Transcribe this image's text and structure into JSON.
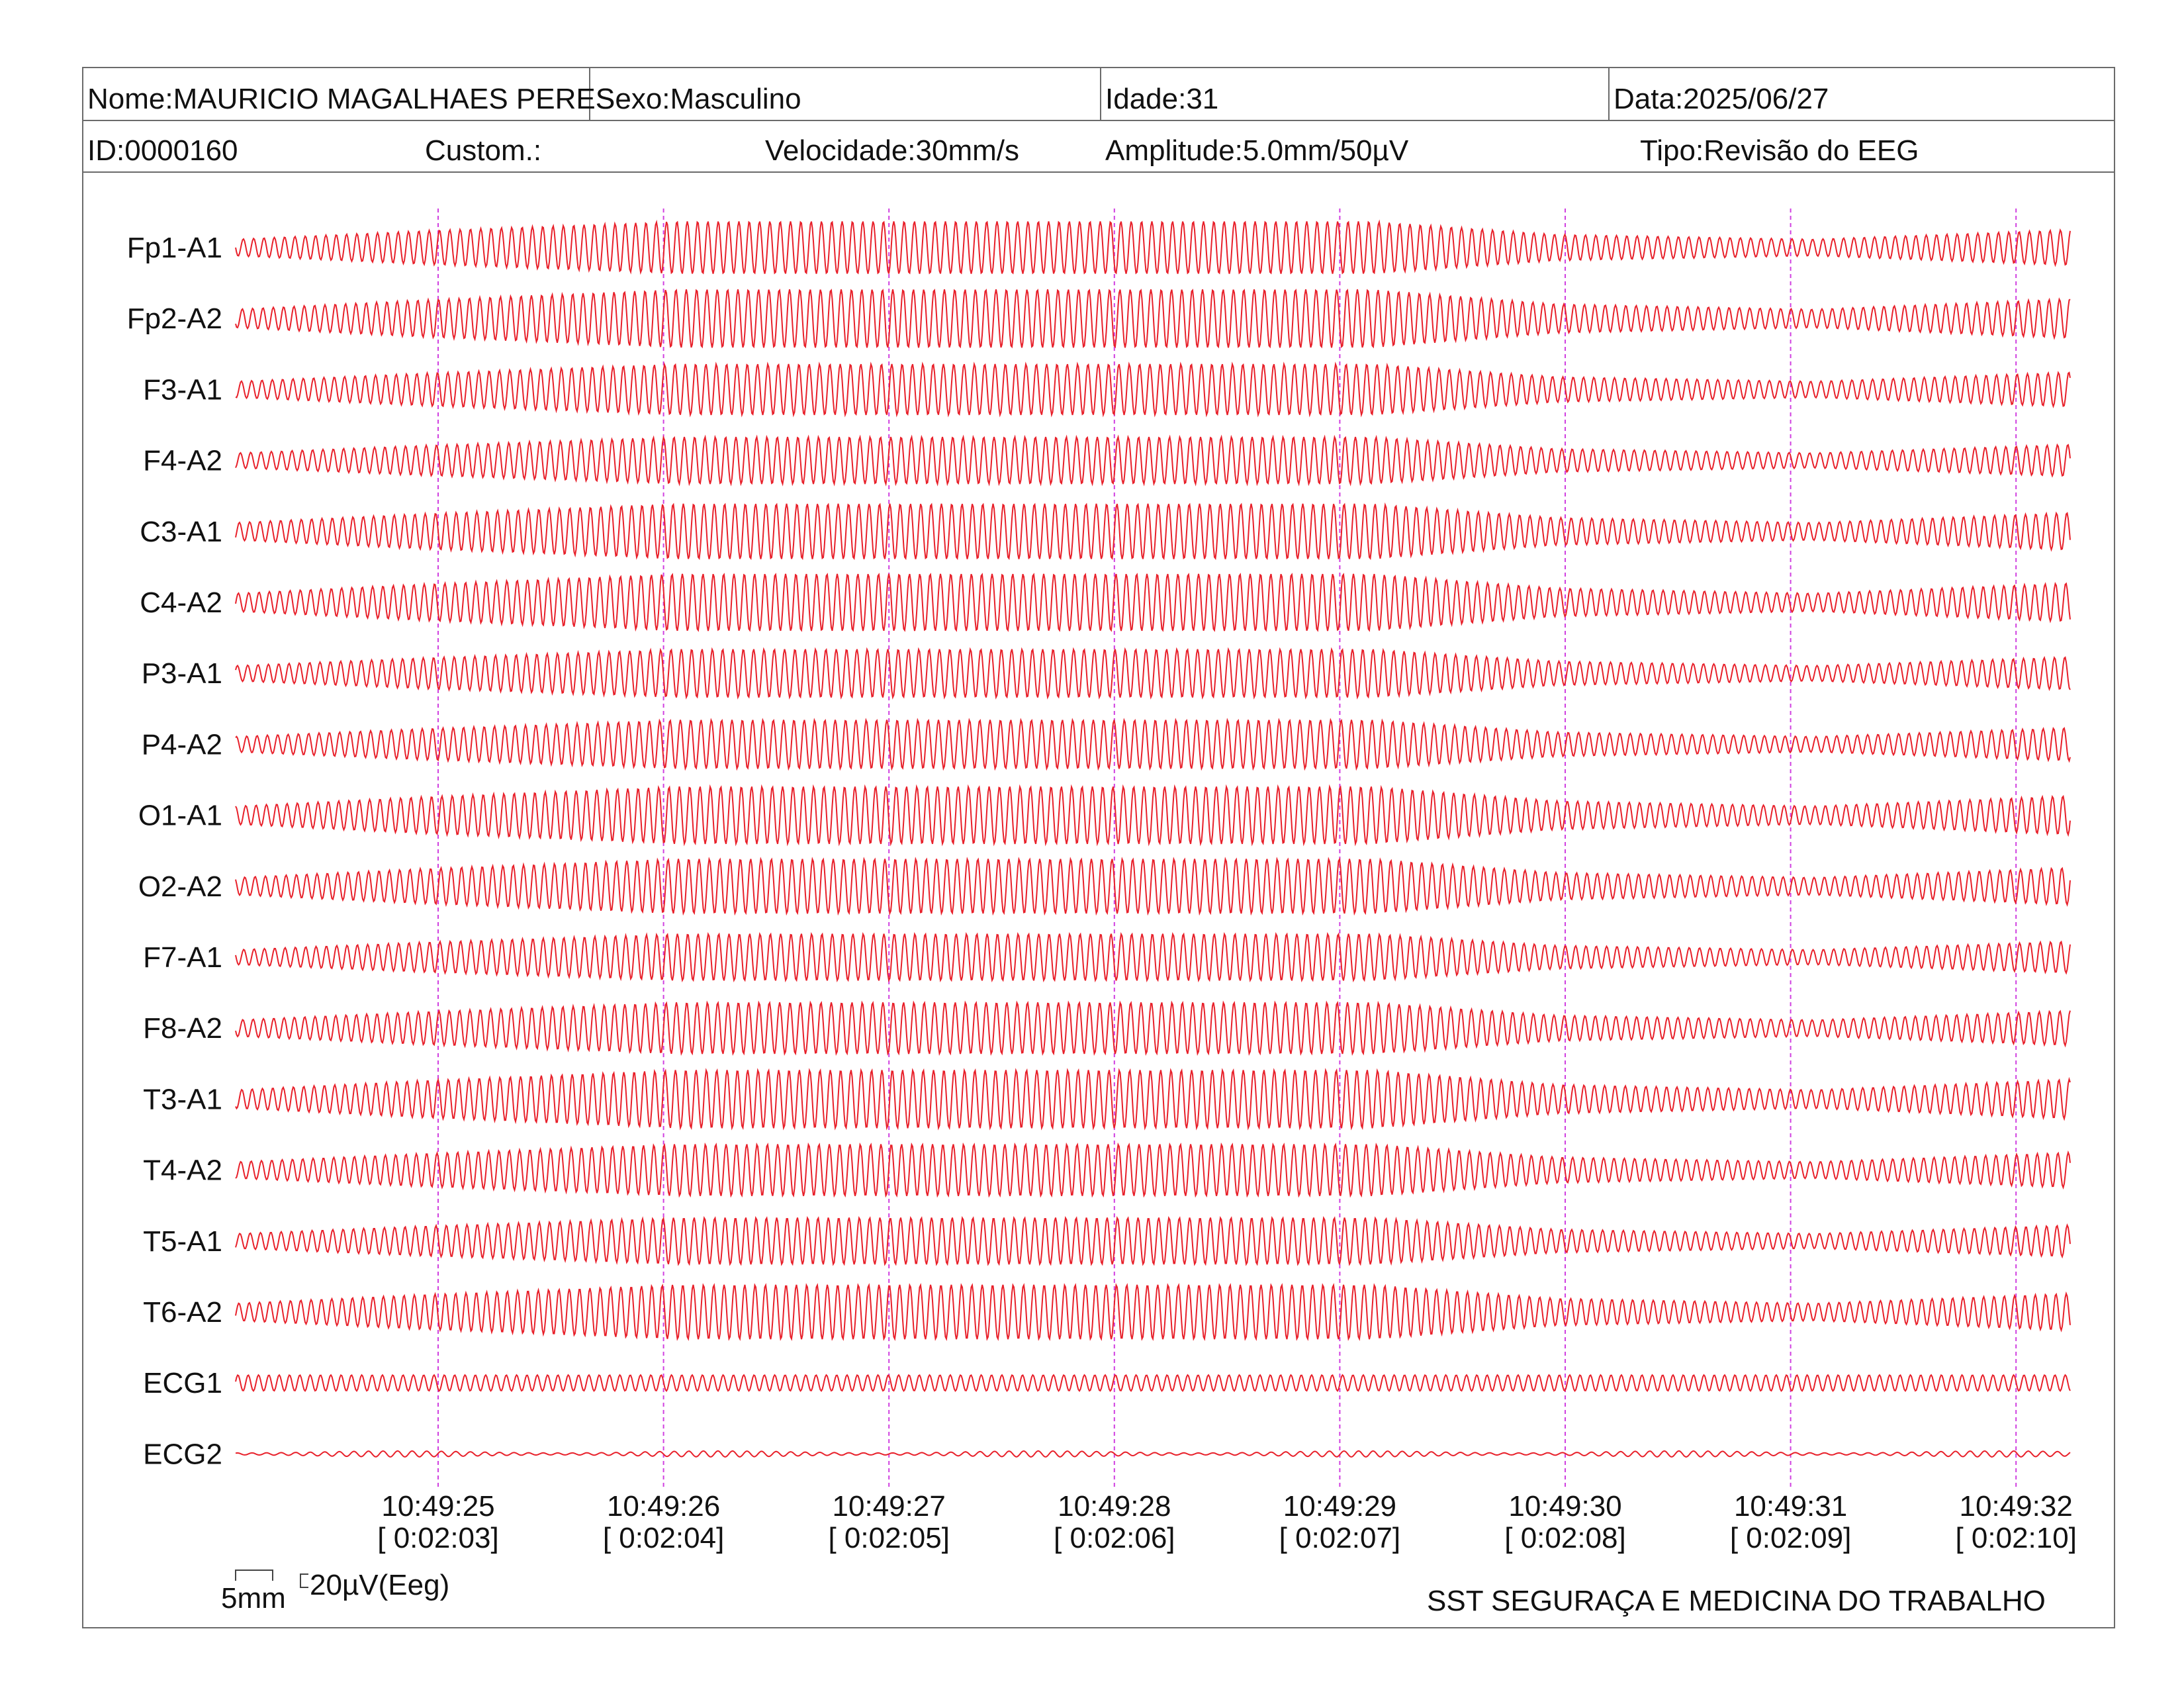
{
  "header": {
    "nome": "Nome:MAURICIO MAGALHAES PERES",
    "sexo": "Sexo:Masculino",
    "idade": "Idade:31",
    "data": "Data:2025/06/27",
    "id": "ID:0000160",
    "custom": "Custom.:",
    "velocidade": "Velocidade:30mm/s",
    "amplitude": "Amplitude:5.0mm/50µV",
    "tipo": "Tipo:Revisão do EEG"
  },
  "scale": {
    "time_label": "5mm",
    "amp_label": "20µV(Eeg)"
  },
  "footer": {
    "org": "SST SEGURAÇA E MEDICINA DO TRABALHO"
  },
  "colors": {
    "trace": "#e8202a",
    "marker": "#d040e0",
    "frame": "#6b6b6b"
  },
  "chart_data": {
    "type": "line",
    "channels": [
      "Fp1-A1",
      "Fp2-A2",
      "F3-A1",
      "F4-A2",
      "C3-A1",
      "C4-A2",
      "P3-A1",
      "P4-A2",
      "O1-A1",
      "O2-A2",
      "F7-A1",
      "F8-A2",
      "T3-A1",
      "T4-A2",
      "T5-A1",
      "T6-A2",
      "ECG1",
      "ECG2"
    ],
    "x_ticks": [
      {
        "time": "10:49:25",
        "elapsed": "[ 0:02:03]"
      },
      {
        "time": "10:49:26",
        "elapsed": "[ 0:02:04]"
      },
      {
        "time": "10:49:27",
        "elapsed": "[ 0:02:05]"
      },
      {
        "time": "10:49:28",
        "elapsed": "[ 0:02:06]"
      },
      {
        "time": "10:49:29",
        "elapsed": "[ 0:02:07]"
      },
      {
        "time": "10:49:30",
        "elapsed": "[ 0:02:08]"
      },
      {
        "time": "10:49:31",
        "elapsed": "[ 0:02:09]"
      },
      {
        "time": "10:49:32",
        "elapsed": "[ 0:02:10]"
      }
    ],
    "grid": "vertical dashed second markers"
  }
}
